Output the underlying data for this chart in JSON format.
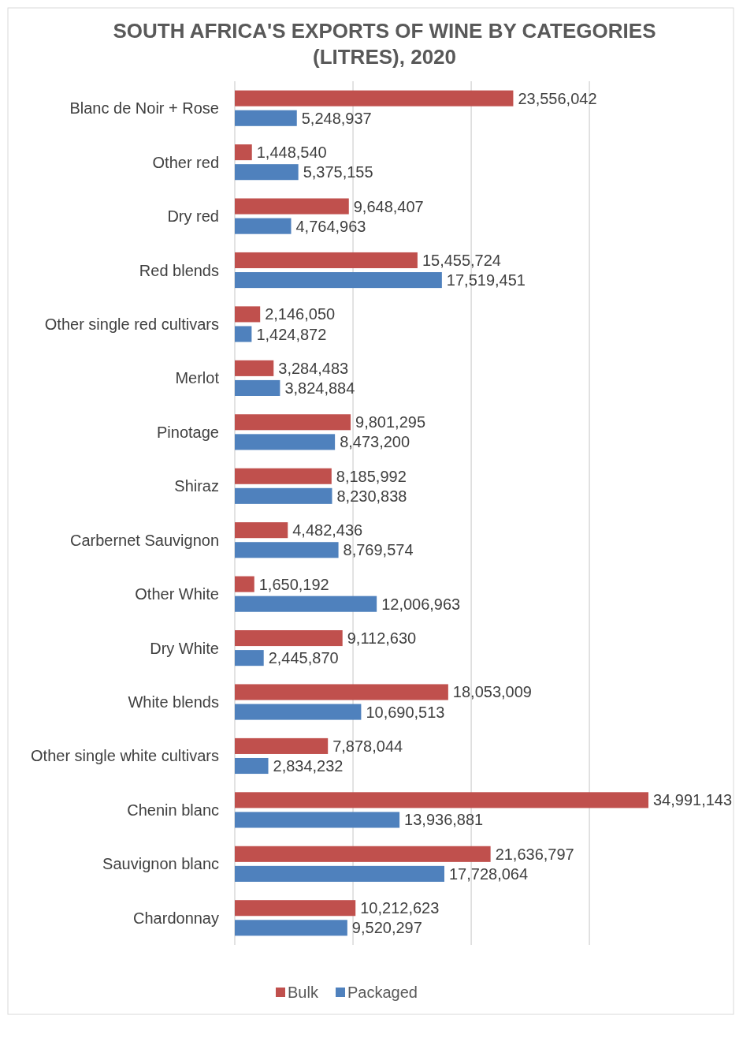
{
  "chart_data": {
    "type": "bar",
    "orientation": "horizontal",
    "title": "SOUTH AFRICA'S EXPORTS OF WINE BY CATEGORIES (LITRES), 2020",
    "categories": [
      "Blanc de Noir + Rose",
      "Other red",
      "Dry red",
      "Red blends",
      "Other single red cultivars",
      "Merlot",
      "Pinotage",
      "Shiraz",
      "Carbernet Sauvignon",
      "Other White",
      "Dry White",
      "White blends",
      "Other single white cultivars",
      "Chenin blanc",
      "Sauvignon blanc",
      "Chardonnay"
    ],
    "series": [
      {
        "name": "Bulk",
        "color": "#c0504d",
        "values": [
          23556042,
          1448540,
          9648407,
          15455724,
          2146050,
          3284483,
          9801295,
          8185992,
          4482436,
          1650192,
          9112630,
          18053009,
          7878044,
          34991143,
          21636797,
          10212623
        ],
        "value_labels": [
          "23,556,042",
          "1,448,540",
          "9,648,407",
          "15,455,724",
          "2,146,050",
          "3,284,483",
          "9,801,295",
          "8,185,992",
          "4,482,436",
          "1,650,192",
          "9,112,630",
          "18,053,009",
          "7,878,044",
          "34,991,143",
          "21,636,797",
          "10,212,623"
        ]
      },
      {
        "name": "Packaged",
        "color": "#4f81bd",
        "values": [
          5248937,
          5375155,
          4764963,
          17519451,
          1424872,
          3824884,
          8473200,
          8230838,
          8769574,
          12006963,
          2445870,
          10690513,
          2834232,
          13936881,
          17728064,
          9520297
        ],
        "value_labels": [
          "5,248,937",
          "5,375,155",
          "4,764,963",
          "17,519,451",
          "1,424,872",
          "3,824,884",
          "8,473,200",
          "8,230,838",
          "8,769,574",
          "12,006,963",
          "2,445,870",
          "10,690,513",
          "2,834,232",
          "13,936,881",
          "17,728,064",
          "9,520,297"
        ]
      }
    ],
    "tick_labels": "y",
    "grid": "x",
    "legend": "bottom"
  }
}
